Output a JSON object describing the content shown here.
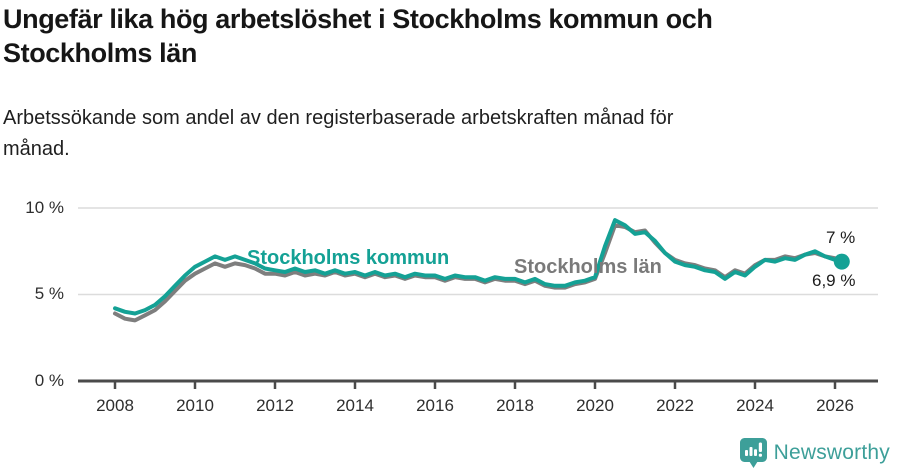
{
  "header": {
    "title_lines": [
      "Ungefär lika hög arbetslöshet i Stockholms kommun och",
      "Stockholms län"
    ],
    "subtitle_lines": [
      "Arbetssökande som andel av den registerbaserade arbetskraften månad för",
      "månad."
    ]
  },
  "chart_data": {
    "type": "line",
    "title": "Ungefär lika hög arbetslöshet i Stockholms kommun och Stockholms län",
    "subtitle": "Arbetssökande som andel av den registerbaserade arbetskraften månad för månad.",
    "ylim": [
      0,
      10
    ],
    "grid": "horizontal",
    "grid_color": "#dcdcdc",
    "axis_color": "#4a4a4a",
    "x_unit": "decimal_year",
    "x": [
      2008,
      2008.25,
      2008.5,
      2008.75,
      2009,
      2009.25,
      2009.5,
      2009.75,
      2010,
      2010.25,
      2010.5,
      2010.75,
      2011,
      2011.25,
      2011.5,
      2011.75,
      2012,
      2012.25,
      2012.5,
      2012.75,
      2013,
      2013.25,
      2013.5,
      2013.75,
      2014,
      2014.25,
      2014.5,
      2014.75,
      2015,
      2015.25,
      2015.5,
      2015.75,
      2016,
      2016.25,
      2016.5,
      2016.75,
      2017,
      2017.25,
      2017.5,
      2017.75,
      2018,
      2018.25,
      2018.5,
      2018.75,
      2019,
      2019.25,
      2019.5,
      2019.75,
      2020,
      2020.25,
      2020.5,
      2020.75,
      2021,
      2021.25,
      2021.5,
      2021.75,
      2022,
      2022.25,
      2022.5,
      2022.75,
      2023,
      2023.25,
      2023.5,
      2023.75,
      2024,
      2024.25,
      2024.5,
      2024.75,
      2025,
      2025.25,
      2025.5,
      2025.75,
      2026,
      2026.17
    ],
    "series": [
      {
        "name": "Stockholms län",
        "color": "#7e7e7e",
        "label_color": "#7a7a7a",
        "values": [
          3.9,
          3.6,
          3.5,
          3.8,
          4.1,
          4.6,
          5.2,
          5.8,
          6.2,
          6.5,
          6.8,
          6.6,
          6.8,
          6.7,
          6.5,
          6.2,
          6.2,
          6.1,
          6.3,
          6.1,
          6.2,
          6.1,
          6.3,
          6.1,
          6.2,
          6.0,
          6.2,
          6.0,
          6.1,
          5.9,
          6.1,
          6.0,
          6.0,
          5.8,
          6.0,
          5.9,
          5.9,
          5.7,
          5.9,
          5.8,
          5.8,
          5.6,
          5.8,
          5.5,
          5.4,
          5.4,
          5.6,
          5.7,
          5.9,
          7.4,
          9.0,
          8.9,
          8.6,
          8.7,
          8.0,
          7.4,
          7.0,
          6.8,
          6.7,
          6.5,
          6.4,
          6.0,
          6.4,
          6.2,
          6.7,
          7.0,
          7.0,
          7.2,
          7.1,
          7.3,
          7.4,
          7.2,
          7.1,
          7.0
        ]
      },
      {
        "name": "Stockholms kommun",
        "color": "#14a195",
        "label_color": "#14a195",
        "values": [
          4.2,
          4.0,
          3.9,
          4.1,
          4.4,
          4.9,
          5.5,
          6.1,
          6.6,
          6.9,
          7.2,
          7.0,
          7.2,
          7.0,
          6.8,
          6.5,
          6.4,
          6.3,
          6.5,
          6.3,
          6.4,
          6.2,
          6.4,
          6.2,
          6.3,
          6.1,
          6.3,
          6.1,
          6.2,
          6.0,
          6.2,
          6.1,
          6.1,
          5.9,
          6.1,
          6.0,
          6.0,
          5.8,
          6.0,
          5.9,
          5.9,
          5.7,
          5.9,
          5.6,
          5.5,
          5.5,
          5.7,
          5.8,
          6.0,
          7.8,
          9.3,
          9.0,
          8.5,
          8.6,
          8.1,
          7.4,
          6.9,
          6.7,
          6.6,
          6.4,
          6.3,
          5.9,
          6.3,
          6.1,
          6.6,
          7.0,
          6.9,
          7.1,
          7.0,
          7.3,
          7.5,
          7.2,
          7.0,
          6.9
        ]
      }
    ],
    "yticks": [
      {
        "value": 10,
        "label": "10 %"
      },
      {
        "value": 5,
        "label": "5 %"
      },
      {
        "value": 0,
        "label": "0 %"
      }
    ],
    "xticks": [
      2008,
      2010,
      2012,
      2014,
      2016,
      2018,
      2020,
      2022,
      2024,
      2026
    ],
    "annotations": [
      {
        "text": "7 %",
        "series": "Stockholms län",
        "position": "end-top"
      },
      {
        "text": "6,9 %",
        "series": "Stockholms kommun",
        "position": "end-bottom"
      }
    ],
    "legend": "inline-labels"
  },
  "footer": {
    "brand": "Newsworthy",
    "brand_color": "#3d9f99"
  }
}
